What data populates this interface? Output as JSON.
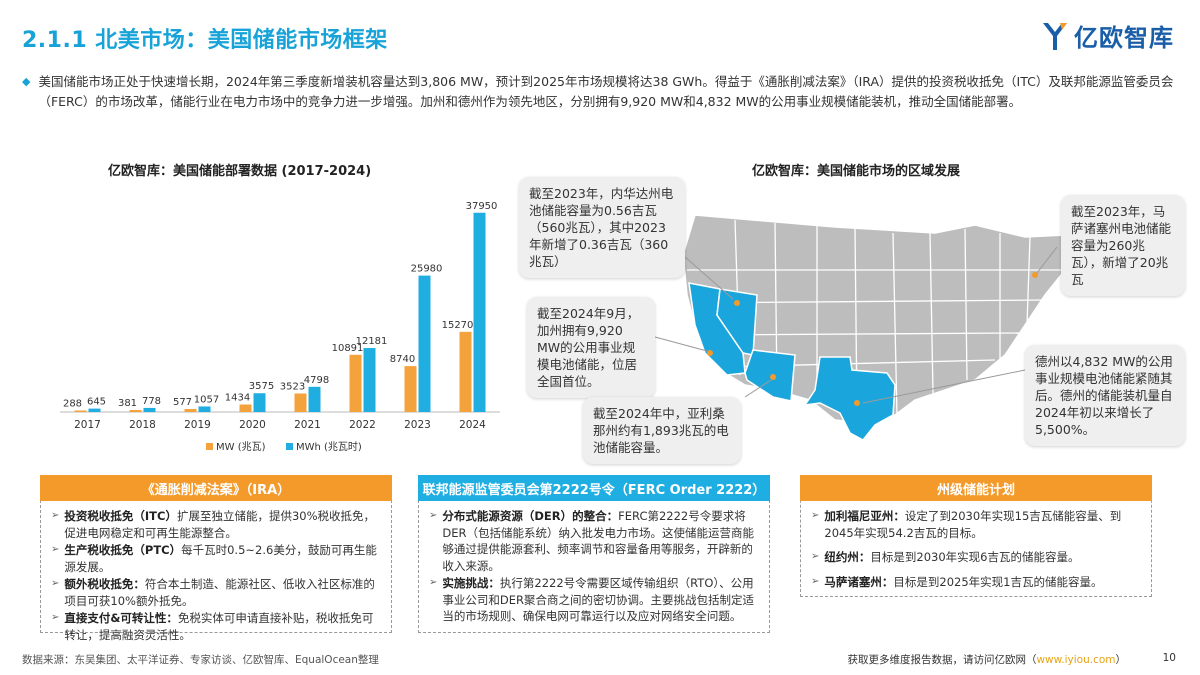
{
  "header": {
    "title": "2.1.1 北美市场：美国储能市场框架",
    "logo_text": "亿欧智库"
  },
  "intro": {
    "text": "美国储能市场正处于快速增长期，2024年第三季度新增装机容量达到3,806 MW，预计到2025年市场规模将达38 GWh。得益于《通胀削减法案》（IRA）提供的投资税收抵免（ITC）及联邦能源监管委员会（FERC）的市场改革，储能行业在电力市场中的竞争力进一步增强。加州和德州作为领先地区，分别拥有9,920 MW和4,832 MW的公用事业规模储能装机，推动全国储能部署。"
  },
  "left_chart_title": "亿欧智库：美国储能部署数据 (2017-2024)",
  "right_chart_title": "亿欧智库：美国储能市场的区域发展",
  "chart_data": {
    "type": "bar",
    "title": "亿欧智库：美国储能部署数据 (2017-2024)",
    "categories": [
      "2017",
      "2018",
      "2019",
      "2020",
      "2021",
      "2022",
      "2023",
      "2024"
    ],
    "series": [
      {
        "name": "MW (兆瓦)",
        "color": "#f4a23b",
        "values": [
          288,
          381,
          577,
          1434,
          3523,
          10891,
          8740,
          15270
        ],
        "labels": [
          "288",
          "381",
          "577",
          "1434",
          "3523",
          "10891",
          "8740",
          "15270"
        ]
      },
      {
        "name": "MWh (兆瓦时)",
        "color": "#20aee0",
        "values": [
          645,
          778,
          1057,
          3575,
          4798,
          12181,
          25980,
          37950
        ],
        "labels": [
          "645",
          "778",
          "1057",
          "3575",
          "4798",
          "12181",
          "25980",
          "37950"
        ]
      }
    ],
    "ylim": [
      0,
      40000
    ],
    "legend": "bottom",
    "grid": false
  },
  "map": {
    "callouts": {
      "california_2023": "截至2023年，内华达州电池储能容量为0.56吉瓦（560兆瓦），其中2023年新增了0.36吉瓦（360兆瓦）",
      "california_2024": "截至2024年9月，加州拥有9,920 MW的公用事业规模电池储能，位居全国首位。",
      "arizona": "截至2024年中，亚利桑那州约有1,893兆瓦的电池储能容量。",
      "massachusetts": "截至2023年，马萨诸塞州电池储能容量为260兆瓦），新增了20兆瓦",
      "texas": "德州以4,832 MW的公用事业规模电池储能紧随其后。德州的储能装机量自2024年初以来增长了5,500%。"
    }
  },
  "panels": [
    {
      "title": "《通胀削减法案》（IRA）",
      "color": "#f39a2b",
      "items": [
        {
          "term": "投资税收抵免（ITC）",
          "text": "扩展至独立储能，提供30%税收抵免，促进电网稳定和可再生能源整合。"
        },
        {
          "term": "生产税收抵免（PTC）",
          "text": "每千瓦时0.5~2.6美分，鼓励可再生能源发展。"
        },
        {
          "term": "额外税收抵免：",
          "text": "符合本土制造、能源社区、低收入社区标准的项目可获10%额外抵免。"
        },
        {
          "term": "直接支付&可转让性：",
          "text": "免税实体可申请直接补贴，税收抵免可转让，提高融资灵活性。"
        }
      ]
    },
    {
      "title": "联邦能源监管委员会第2222号令（FERC Order 2222）",
      "color": "#1eaee2",
      "items": [
        {
          "term": "分布式能源资源（DER）的整合：",
          "text": "FERC第2222号令要求将DER（包括储能系统）纳入批发电力市场。这使储能运营商能够通过提供能源套利、频率调节和容量备用等服务，开辟新的收入来源。"
        },
        {
          "term": "实施挑战：",
          "text": "执行第2222号令需要区域传输组织（RTO）、公用事业公司和DER聚合商之间的密切协调。主要挑战包括制定适当的市场规则、确保电网可靠运行以及应对网络安全问题。"
        }
      ]
    },
    {
      "title": "州级储能计划",
      "color": "#f39a2b",
      "items": [
        {
          "term": "加利福尼亚州：",
          "text": "设定了到2030年实现15吉瓦储能容量、到2045年实现54.2吉瓦的目标。"
        },
        {
          "term": "纽约州：",
          "text": "目标是到2030年实现6吉瓦的储能容量。"
        },
        {
          "term": "马萨诸塞州：",
          "text": "目标是到2025年实现1吉瓦的储能容量。"
        }
      ]
    }
  ],
  "footer": {
    "source": "数据来源：东吴集团、太平洋证券、专家访谈、亿欧智库、EqualOcean整理",
    "more_prefix": "获取更多维度报告数据，请访问亿欧网（",
    "more_link": "www.iyiou.com",
    "more_suffix": "）",
    "page_number": "10"
  }
}
